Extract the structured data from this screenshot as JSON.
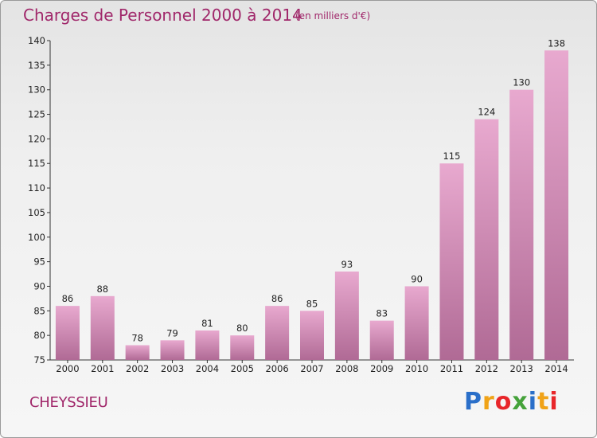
{
  "title": "Charges de Personnel 2000 à 2014",
  "subtitle": "(en milliers d'€)",
  "commune": "CHEYSSIEU",
  "logo": {
    "letters": [
      "P",
      "r",
      "o",
      "x",
      "i",
      "t",
      "i"
    ],
    "colors": [
      "#2a6fc9",
      "#f0a318",
      "#e8262a",
      "#45a23a",
      "#2a6fc9",
      "#f0a318",
      "#e8262a"
    ]
  },
  "colors": {
    "bar_top": "#e8a9cf",
    "bar_bottom": "#b06a95",
    "text": "#a0276a"
  },
  "chart_data": {
    "type": "bar",
    "title": "Charges de Personnel 2000 à 2014",
    "subtitle": "(en milliers d'€)",
    "categories": [
      "2000",
      "2001",
      "2002",
      "2003",
      "2004",
      "2005",
      "2006",
      "2007",
      "2008",
      "2009",
      "2010",
      "2011",
      "2012",
      "2013",
      "2014"
    ],
    "values": [
      86,
      88,
      78,
      79,
      81,
      80,
      86,
      85,
      93,
      83,
      90,
      115,
      124,
      130,
      138
    ],
    "ylim": [
      75,
      140
    ],
    "yticks": [
      75,
      80,
      85,
      90,
      95,
      100,
      105,
      110,
      115,
      120,
      125,
      130,
      135,
      140
    ],
    "grid": false,
    "legend": "none"
  }
}
